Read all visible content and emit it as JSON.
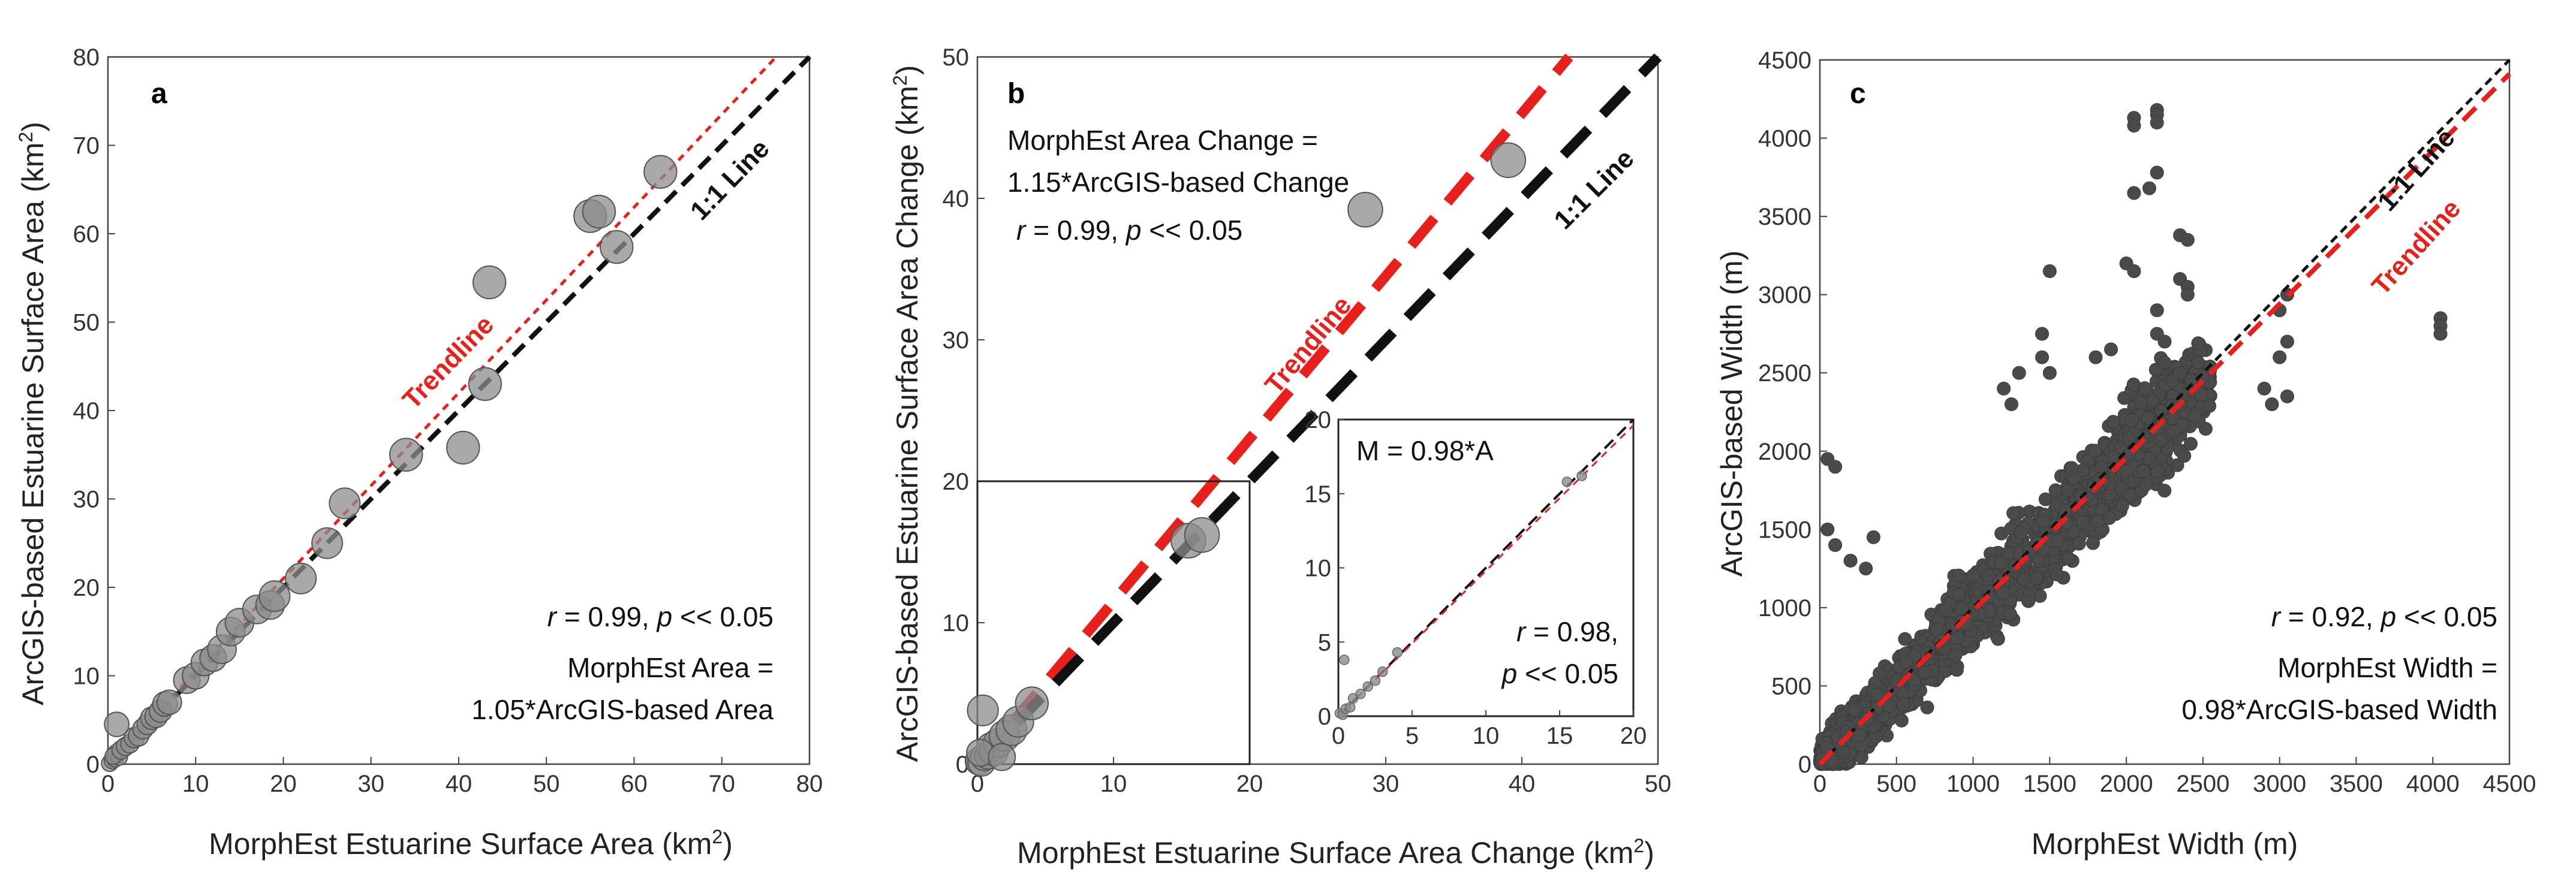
{
  "chart_data": [
    {
      "type": "scatter",
      "panel_label": "a",
      "xlabel": "MorphEst Estuarine Surface Area (km",
      "ylabel": "ArcGIS-based Estuarine Surface Area (km",
      "unit_sup": "2",
      "unit_close": ")",
      "xlim": [
        0,
        80
      ],
      "ylim": [
        0,
        80
      ],
      "xticks": [
        0,
        10,
        20,
        30,
        40,
        50,
        60,
        70,
        80
      ],
      "yticks": [
        0,
        10,
        20,
        30,
        40,
        50,
        60,
        70,
        80
      ],
      "one_to_one_label": "1:1 Line",
      "trend_label": "Trendline",
      "trend_slope": 1.05,
      "annotations": [
        "r = 0.99, p << 0.05",
        "MorphEst Area =",
        "1.05*ArcGIS-based Area"
      ],
      "points": [
        [
          0.2,
          0.1
        ],
        [
          0.5,
          0.4
        ],
        [
          0.8,
          0.6
        ],
        [
          1.0,
          1.2
        ],
        [
          1.3,
          0.8
        ],
        [
          0.6,
          0.9
        ],
        [
          1.5,
          1.6
        ],
        [
          2,
          2
        ],
        [
          2.5,
          2.3
        ],
        [
          3,
          3
        ],
        [
          3.5,
          3.2
        ],
        [
          4,
          4
        ],
        [
          4.5,
          4.5
        ],
        [
          5,
          5.2
        ],
        [
          5.5,
          5.4
        ],
        [
          6,
          6
        ],
        [
          6.5,
          6.8
        ],
        [
          1,
          4.5
        ],
        [
          7,
          7
        ],
        [
          9,
          9.5
        ],
        [
          10,
          10
        ],
        [
          11,
          11.5
        ],
        [
          12,
          12
        ],
        [
          13,
          13
        ],
        [
          14,
          15
        ],
        [
          15,
          16
        ],
        [
          17,
          17.5
        ],
        [
          18.5,
          18
        ],
        [
          19,
          19
        ],
        [
          22,
          21
        ],
        [
          25,
          25
        ],
        [
          27,
          29.5
        ],
        [
          34,
          35
        ],
        [
          40.5,
          35.8
        ],
        [
          43,
          43
        ],
        [
          43.5,
          54.5
        ],
        [
          55,
          62
        ],
        [
          56,
          62.5
        ],
        [
          58,
          58.5
        ],
        [
          63,
          67
        ]
      ],
      "point_sizes": [
        8,
        8,
        8,
        9,
        8,
        8,
        9,
        9,
        9,
        10,
        10,
        10,
        10,
        11,
        11,
        11,
        12,
        12,
        12,
        13,
        13,
        13,
        13,
        14,
        14,
        14,
        14,
        14,
        15,
        15,
        15,
        15,
        16,
        16,
        16,
        16,
        16,
        16,
        16,
        16
      ]
    },
    {
      "type": "scatter",
      "panel_label": "b",
      "xlabel": "MorphEst Estuarine Surface Area Change (km",
      "ylabel": "ArcGIS-based Estuarine Surface Area Change (km",
      "unit_sup": "2",
      "unit_close": ")",
      "xlim": [
        0,
        50
      ],
      "ylim": [
        0,
        50
      ],
      "xticks": [
        0,
        10,
        20,
        30,
        40,
        50
      ],
      "yticks": [
        0,
        10,
        20,
        30,
        40,
        50
      ],
      "one_to_one_label": "1:1 Line",
      "trend_label": "Trendline",
      "trend_slope": 1.15,
      "annotations": [
        "MorphEst Area Change =",
        "1.15*ArcGIS-based Change",
        "r = 0.99, p << 0.05"
      ],
      "points": [
        [
          0.1,
          0.2
        ],
        [
          0.3,
          0.1
        ],
        [
          0.5,
          0.5
        ],
        [
          0.8,
          0.6
        ],
        [
          1,
          1.2
        ],
        [
          1.2,
          0.9
        ],
        [
          1.5,
          1.5
        ],
        [
          2,
          2
        ],
        [
          2.5,
          2.4
        ],
        [
          0.4,
          3.8
        ],
        [
          3,
          3
        ],
        [
          4,
          4.3
        ],
        [
          0.2,
          0.8
        ],
        [
          1.8,
          0.5
        ],
        [
          15.5,
          15.8
        ],
        [
          16.5,
          16.2
        ],
        [
          28.5,
          39.2
        ],
        [
          39,
          42.7
        ]
      ],
      "point_sizes": [
        14,
        14,
        14,
        14,
        15,
        15,
        15,
        16,
        16,
        16,
        16,
        17,
        14,
        14,
        18,
        18,
        18,
        18
      ],
      "inset": {
        "xlim": [
          0,
          20
        ],
        "ylim": [
          0,
          20
        ],
        "xticks": [
          0,
          5,
          10,
          15,
          20
        ],
        "yticks": [
          0,
          5,
          10,
          15,
          20
        ],
        "annotations": [
          "M = 0.98*A",
          "r = 0.98,",
          "p << 0.05"
        ],
        "trend_slope": 0.98,
        "points": [
          [
            0.1,
            0.2
          ],
          [
            0.3,
            0.1
          ],
          [
            0.5,
            0.5
          ],
          [
            0.8,
            0.6
          ],
          [
            1,
            1.2
          ],
          [
            1.5,
            1.5
          ],
          [
            2,
            2
          ],
          [
            2.5,
            2.4
          ],
          [
            0.4,
            3.8
          ],
          [
            3,
            3
          ],
          [
            4,
            4.3
          ],
          [
            15.5,
            15.8
          ],
          [
            16.5,
            16.2
          ]
        ]
      }
    },
    {
      "type": "scatter",
      "panel_label": "c",
      "xlabel": "MorphEst Width (m)",
      "ylabel": "ArcGIS-based Width (m)",
      "xlim": [
        0,
        4500
      ],
      "ylim": [
        0,
        4500
      ],
      "xticks": [
        0,
        500,
        1000,
        1500,
        2000,
        2500,
        3000,
        3500,
        4000,
        4500
      ],
      "yticks": [
        0,
        500,
        1000,
        1500,
        2000,
        2500,
        3000,
        3500,
        4000,
        4500
      ],
      "one_to_one_label": "1:1 Line",
      "trend_label": "Trendline",
      "trend_slope": 0.98,
      "annotations": [
        "r = 0.92, p << 0.05",
        "MorphEst Width =",
        "0.98*ArcGIS-based Width"
      ],
      "cloud": {
        "n": 2200,
        "slope": 0.98,
        "spread": 230
      },
      "points": [
        [
          2050,
          4130
        ],
        [
          2050,
          4080
        ],
        [
          2200,
          4180
        ],
        [
          2200,
          4150
        ],
        [
          2200,
          4100
        ],
        [
          2150,
          3680
        ],
        [
          2200,
          3780
        ],
        [
          2350,
          3380
        ],
        [
          2400,
          3350
        ],
        [
          2050,
          3650
        ],
        [
          2000,
          3200
        ],
        [
          2050,
          3150
        ],
        [
          2350,
          3100
        ],
        [
          2400,
          3050
        ],
        [
          1200,
          2400
        ],
        [
          1250,
          2300
        ],
        [
          1300,
          2500
        ],
        [
          1800,
          2600
        ],
        [
          1900,
          2650
        ],
        [
          3050,
          3000
        ],
        [
          3000,
          2900
        ],
        [
          3050,
          2700
        ],
        [
          3000,
          2600
        ],
        [
          2900,
          2400
        ],
        [
          2950,
          2300
        ],
        [
          3050,
          2350
        ],
        [
          4050,
          2850
        ],
        [
          4050,
          2800
        ],
        [
          4050,
          2750
        ],
        [
          50,
          1950
        ],
        [
          100,
          1900
        ],
        [
          50,
          1500
        ],
        [
          100,
          1400
        ],
        [
          200,
          1300
        ],
        [
          300,
          1250
        ],
        [
          350,
          1450
        ],
        [
          1500,
          3150
        ],
        [
          1450,
          2750
        ],
        [
          1450,
          2600
        ],
        [
          1500,
          2500
        ],
        [
          2200,
          2900
        ],
        [
          2200,
          2750
        ],
        [
          2250,
          2700
        ],
        [
          2400,
          3000
        ],
        [
          2300,
          2450
        ],
        [
          2350,
          2500
        ]
      ]
    }
  ]
}
